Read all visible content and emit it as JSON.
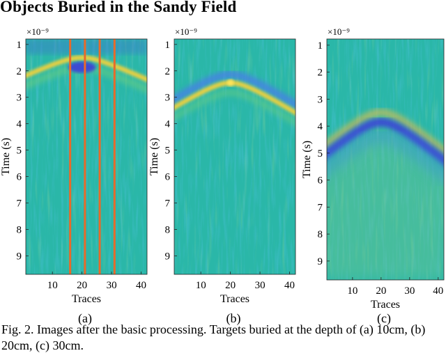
{
  "heading": "Objects Buried in the Sandy Field",
  "caption": "Fig. 2. Images after the basic processing. Targets buried at the depth of (a) 10cm, (b) 20cm, (c) 30cm.",
  "colors": {
    "background": "#2ab7a8",
    "dark_blue": "#3e3ed8",
    "yellow": "#f4d23a",
    "orange_marker": "#e86a2a"
  },
  "chart_data": [
    {
      "type": "heatmap",
      "label": "(a)",
      "xlabel": "Traces",
      "ylabel": "Time (s)",
      "exponent_label": "×10⁻⁹",
      "xticks": [
        10,
        20,
        30,
        40
      ],
      "yticks": [
        1,
        2,
        3,
        4,
        5,
        6,
        7,
        8,
        9
      ],
      "xlim": [
        1,
        42
      ],
      "ylim": [
        0.9,
        9.7
      ],
      "hyperbola": {
        "apex_trace": 20,
        "apex_time": 1.55
      },
      "vertical_markers": [
        16,
        21,
        26,
        31
      ]
    },
    {
      "type": "heatmap",
      "label": "(b)",
      "xlabel": "Traces",
      "ylabel": "Time (s)",
      "exponent_label": "×10⁻⁹",
      "xticks": [
        10,
        20,
        30,
        40
      ],
      "yticks": [
        1,
        2,
        3,
        4,
        5,
        6,
        7,
        8,
        9
      ],
      "xlim": [
        1,
        42
      ],
      "ylim": [
        0.9,
        9.7
      ],
      "hyperbola": {
        "apex_trace": 20,
        "apex_time": 2.4
      }
    },
    {
      "type": "heatmap",
      "label": "(c)",
      "xlabel": "Traces",
      "ylabel": "Time (s)",
      "exponent_label": "×10⁻⁹",
      "xticks": [
        10,
        20,
        30,
        40
      ],
      "yticks": [
        1,
        2,
        3,
        4,
        5,
        6,
        7,
        8,
        9
      ],
      "xlim": [
        1,
        42
      ],
      "ylim": [
        0.9,
        9.7
      ],
      "hyperbola": {
        "apex_trace": 20,
        "apex_time": 3.75
      }
    }
  ]
}
